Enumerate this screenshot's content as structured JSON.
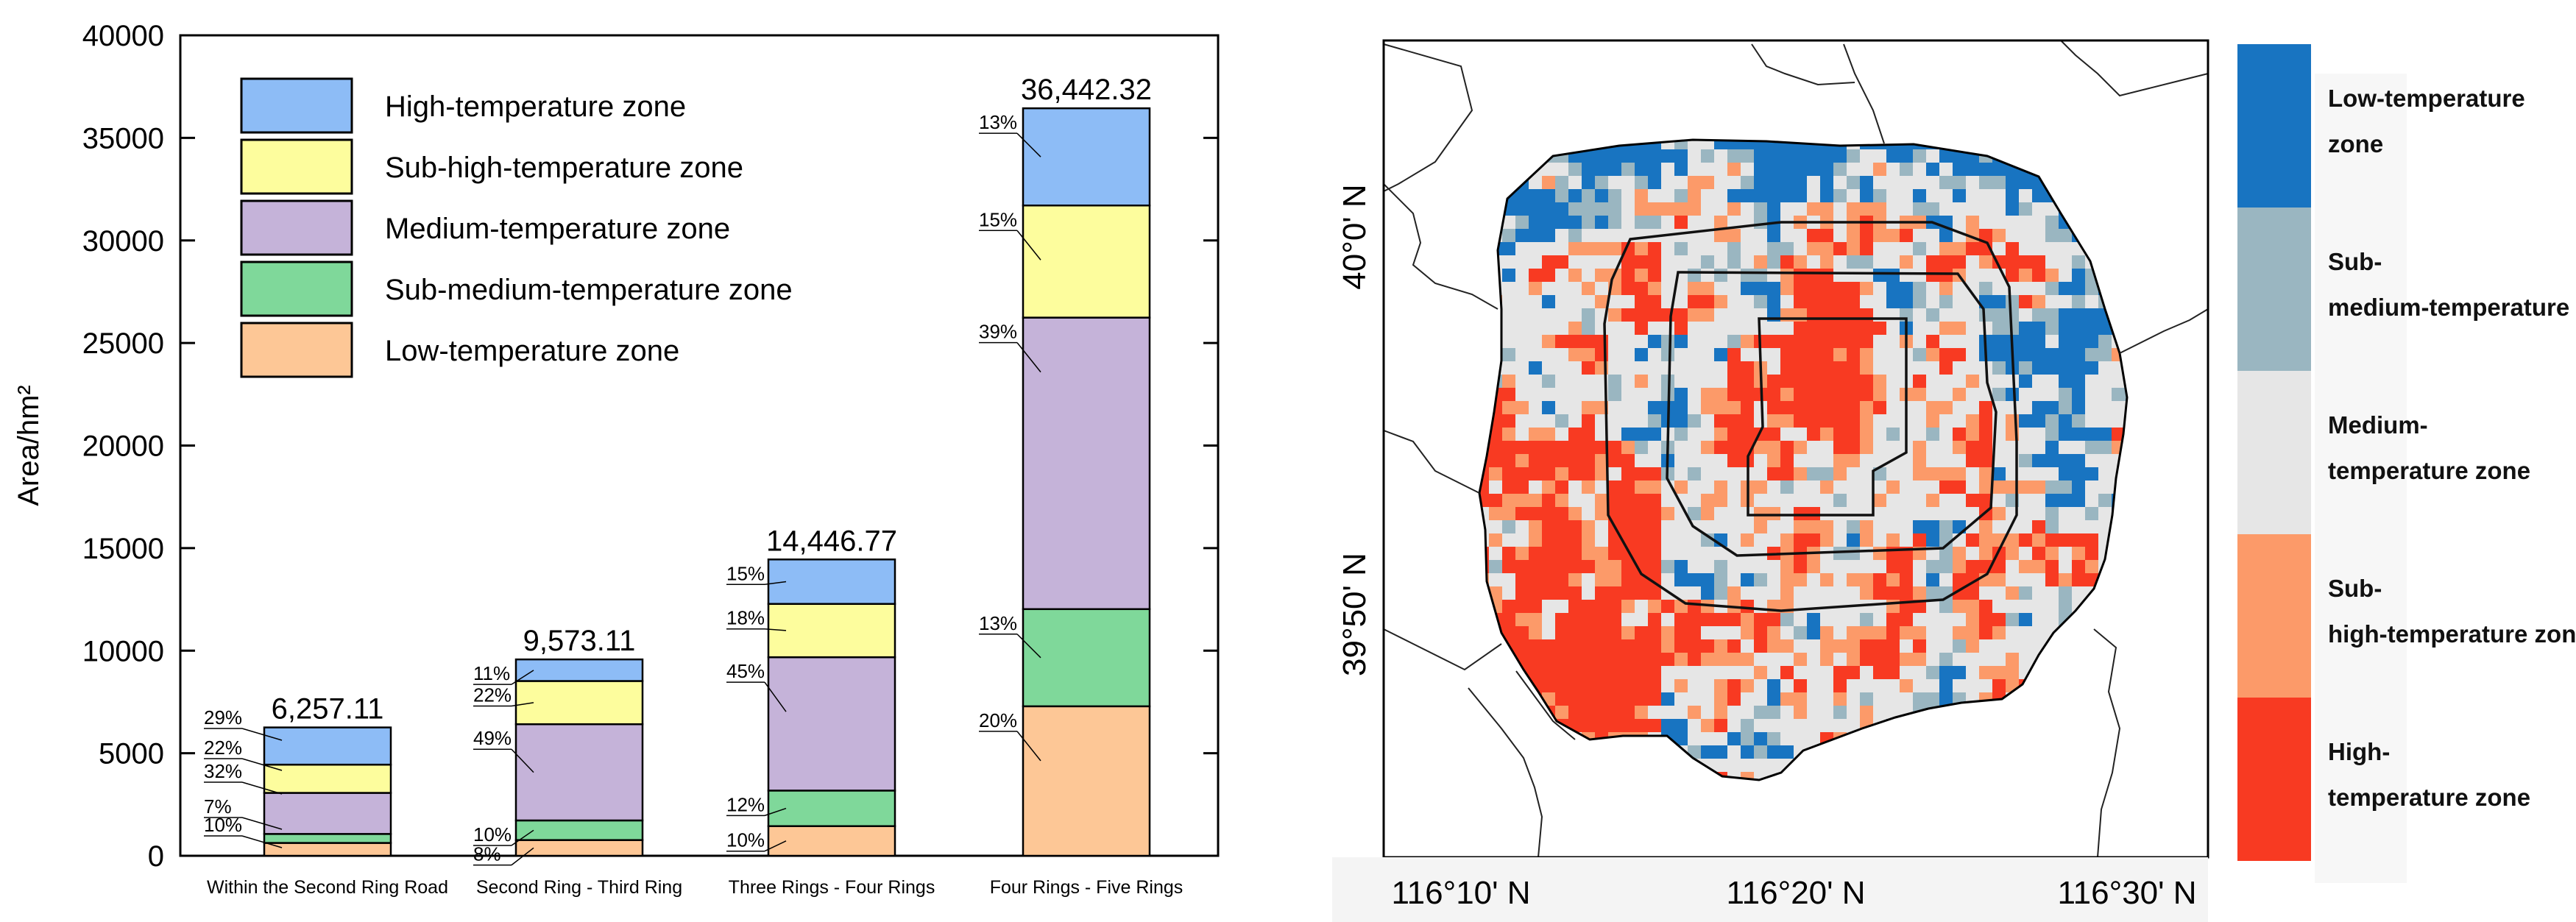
{
  "chart_data": [
    {
      "type": "bar",
      "stacked": true,
      "title": "",
      "xlabel": "",
      "ylabel": "Area/hm²",
      "ylim": [
        0,
        40000
      ],
      "yticks": [
        0,
        5000,
        10000,
        15000,
        20000,
        25000,
        30000,
        35000,
        40000
      ],
      "grid": false,
      "legend_position": "top-left",
      "categories": [
        "Within the Second Ring Road",
        "Second Ring - Third Ring",
        "Three Rings - Four Rings",
        "Four Rings - Five Rings"
      ],
      "totals": [
        6257.11,
        9573.11,
        14446.77,
        36442.32
      ],
      "total_labels": [
        "6,257.11",
        "9,573.11",
        "14,446.77",
        "36,442.32"
      ],
      "series": [
        {
          "name": "Low-temperature zone",
          "color": "#fdc796",
          "values": [
            626,
            766,
            1445,
            7288
          ],
          "labels": [
            "10%",
            "8%",
            "10%",
            "20%"
          ]
        },
        {
          "name": "Sub-medium-temperature zone",
          "color": "#7fd89a",
          "values": [
            438,
            957,
            1734,
            4738
          ],
          "labels": [
            "7%",
            "10%",
            "12%",
            "13%"
          ]
        },
        {
          "name": "Medium-temperature zone",
          "color": "#c5b3d9",
          "values": [
            2002,
            4691,
            6501,
            14212
          ],
          "labels": [
            "32%",
            "49%",
            "45%",
            "39%"
          ]
        },
        {
          "name": "Sub-high-temperature zone",
          "color": "#fdfd9d",
          "values": [
            1377,
            2106,
            2600,
            5466
          ],
          "labels": [
            "22%",
            "22%",
            "18%",
            "15%"
          ]
        },
        {
          "name": "High-temperature zone",
          "color": "#8dbcf6",
          "values": [
            1814,
            1053,
            2167,
            4738
          ],
          "labels": [
            "29%",
            "11%",
            "15%",
            "13%"
          ]
        }
      ],
      "legend_order": [
        "High-temperature zone",
        "Sub-high-temperature zone",
        "Medium-temperature zone",
        "Sub-medium-temperature zone",
        "Low-temperature zone"
      ]
    },
    {
      "type": "heatmap",
      "title": "",
      "xlabel": "",
      "ylabel": "",
      "x_ticks": [
        "116°10' N",
        "116°20' N",
        "116°30' N"
      ],
      "y_ticks": [
        "40°0' N",
        "39°50' N"
      ],
      "legend_position": "right",
      "legend": [
        {
          "label": "Low-temperature zone",
          "color": "#1874c1"
        },
        {
          "label": "Sub-medium-temperature zone",
          "color": "#9ab6c1"
        },
        {
          "label": "Medium-temperature zone",
          "color": "#e6e6e6"
        },
        {
          "label": "Sub-high-temperature zone",
          "color": "#fc9a69"
        },
        {
          "label": "High-temperature zone",
          "color": "#f83a22"
        }
      ]
    }
  ]
}
